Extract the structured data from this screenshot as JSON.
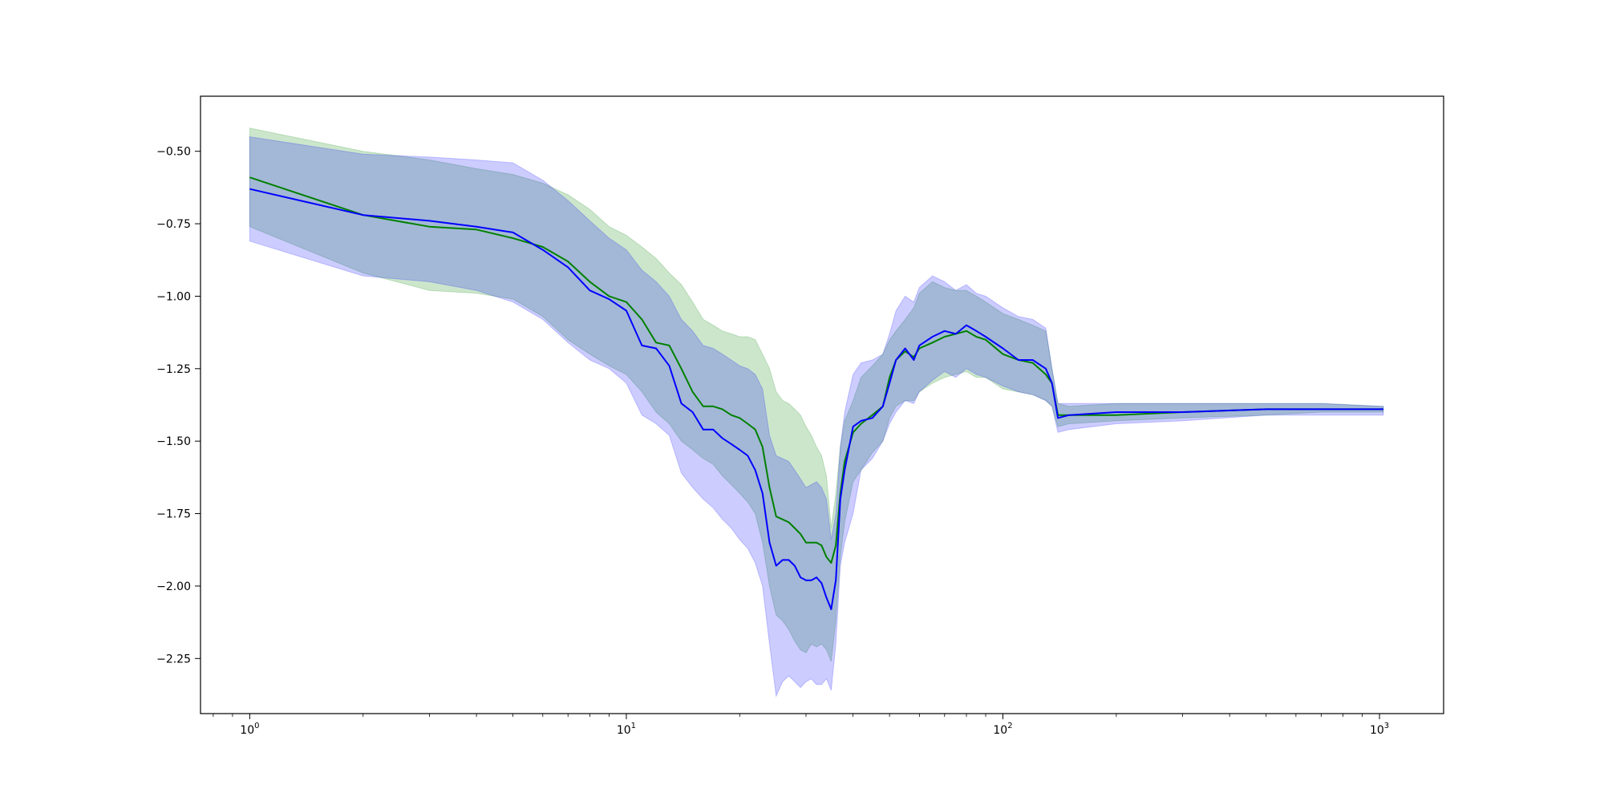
{
  "chart_data": {
    "type": "line",
    "title": "",
    "xlabel": "",
    "ylabel": "",
    "xscale": "log",
    "xlim": [
      0.74,
      1480
    ],
    "ylim": [
      -2.44,
      -0.31
    ],
    "grid": false,
    "x_ticks": [
      {
        "value": 1,
        "base": "10",
        "exp": "0"
      },
      {
        "value": 10,
        "base": "10",
        "exp": "1"
      },
      {
        "value": 100,
        "base": "10",
        "exp": "2"
      },
      {
        "value": 1000,
        "base": "10",
        "exp": "3"
      }
    ],
    "y_ticks": [
      {
        "value": -0.5,
        "label": "−0.50"
      },
      {
        "value": -0.75,
        "label": "−0.75"
      },
      {
        "value": -1.0,
        "label": "−1.00"
      },
      {
        "value": -1.25,
        "label": "−1.25"
      },
      {
        "value": -1.5,
        "label": "−1.50"
      },
      {
        "value": -1.75,
        "label": "−1.75"
      },
      {
        "value": -2.0,
        "label": "−2.00"
      },
      {
        "value": -2.25,
        "label": "−2.25"
      }
    ],
    "colors": {
      "green": "#008000",
      "blue": "#0000ff",
      "green_band": "rgba(0,128,0,0.2)",
      "blue_band": "rgba(0,0,255,0.2)"
    },
    "series": [
      {
        "color_key": "green",
        "x": [
          1,
          2,
          3,
          4,
          5,
          6,
          7,
          8,
          9,
          10,
          11,
          12,
          13,
          14,
          15,
          16,
          17,
          18,
          19,
          20,
          21,
          22,
          23,
          24,
          25,
          26,
          27,
          28,
          29,
          30,
          31,
          32,
          33,
          34,
          35,
          36,
          37,
          38,
          40,
          42,
          45,
          48,
          50,
          52,
          55,
          58,
          60,
          65,
          70,
          75,
          80,
          85,
          90,
          100,
          110,
          120,
          130,
          135,
          140,
          150,
          200,
          300,
          500,
          700,
          1024
        ],
        "y": [
          -0.59,
          -0.72,
          -0.76,
          -0.77,
          -0.8,
          -0.83,
          -0.88,
          -0.95,
          -1.0,
          -1.02,
          -1.08,
          -1.16,
          -1.17,
          -1.25,
          -1.33,
          -1.38,
          -1.38,
          -1.39,
          -1.41,
          -1.42,
          -1.44,
          -1.46,
          -1.52,
          -1.66,
          -1.76,
          -1.77,
          -1.78,
          -1.8,
          -1.82,
          -1.85,
          -1.85,
          -1.85,
          -1.86,
          -1.9,
          -1.92,
          -1.86,
          -1.68,
          -1.57,
          -1.47,
          -1.44,
          -1.41,
          -1.38,
          -1.28,
          -1.22,
          -1.19,
          -1.21,
          -1.18,
          -1.16,
          -1.14,
          -1.13,
          -1.12,
          -1.14,
          -1.15,
          -1.2,
          -1.22,
          -1.23,
          -1.27,
          -1.3,
          -1.41,
          -1.41,
          -1.41,
          -1.4,
          -1.39,
          -1.39,
          -1.39
        ],
        "lower": [
          -0.76,
          -0.92,
          -0.98,
          -0.99,
          -1.01,
          -1.07,
          -1.15,
          -1.2,
          -1.24,
          -1.27,
          -1.33,
          -1.4,
          -1.44,
          -1.5,
          -1.53,
          -1.56,
          -1.58,
          -1.62,
          -1.65,
          -1.68,
          -1.71,
          -1.75,
          -1.85,
          -2.0,
          -2.1,
          -2.12,
          -2.15,
          -2.19,
          -2.22,
          -2.23,
          -2.2,
          -2.21,
          -2.2,
          -2.22,
          -2.26,
          -2.12,
          -1.9,
          -1.78,
          -1.64,
          -1.6,
          -1.54,
          -1.5,
          -1.42,
          -1.38,
          -1.36,
          -1.36,
          -1.33,
          -1.3,
          -1.28,
          -1.27,
          -1.26,
          -1.28,
          -1.28,
          -1.32,
          -1.33,
          -1.34,
          -1.36,
          -1.38,
          -1.45,
          -1.44,
          -1.43,
          -1.42,
          -1.41,
          -1.4,
          -1.4
        ],
        "upper": [
          -0.42,
          -0.5,
          -0.53,
          -0.56,
          -0.58,
          -0.61,
          -0.65,
          -0.7,
          -0.76,
          -0.79,
          -0.83,
          -0.87,
          -0.92,
          -0.96,
          -1.02,
          -1.08,
          -1.1,
          -1.12,
          -1.13,
          -1.14,
          -1.14,
          -1.15,
          -1.2,
          -1.25,
          -1.33,
          -1.36,
          -1.37,
          -1.39,
          -1.41,
          -1.45,
          -1.48,
          -1.52,
          -1.55,
          -1.62,
          -1.8,
          -1.68,
          -1.52,
          -1.43,
          -1.36,
          -1.28,
          -1.24,
          -1.2,
          -1.15,
          -1.12,
          -1.08,
          -1.04,
          -0.99,
          -0.95,
          -0.97,
          -0.98,
          -0.98,
          -1.0,
          -1.02,
          -1.06,
          -1.08,
          -1.1,
          -1.12,
          -1.25,
          -1.37,
          -1.38,
          -1.37,
          -1.37,
          -1.37,
          -1.37,
          -1.38
        ]
      },
      {
        "color_key": "blue",
        "x": [
          1,
          2,
          3,
          4,
          5,
          6,
          7,
          8,
          9,
          10,
          11,
          12,
          13,
          14,
          15,
          16,
          17,
          18,
          19,
          20,
          21,
          22,
          23,
          24,
          25,
          26,
          27,
          28,
          29,
          30,
          31,
          32,
          33,
          34,
          35,
          36,
          37,
          38,
          40,
          42,
          45,
          48,
          50,
          52,
          55,
          58,
          60,
          65,
          70,
          75,
          80,
          85,
          90,
          100,
          110,
          120,
          130,
          135,
          140,
          150,
          200,
          300,
          500,
          700,
          1024
        ],
        "y": [
          -0.63,
          -0.72,
          -0.74,
          -0.76,
          -0.78,
          -0.84,
          -0.9,
          -0.98,
          -1.01,
          -1.05,
          -1.17,
          -1.18,
          -1.24,
          -1.37,
          -1.4,
          -1.46,
          -1.46,
          -1.49,
          -1.51,
          -1.53,
          -1.55,
          -1.6,
          -1.68,
          -1.85,
          -1.93,
          -1.91,
          -1.91,
          -1.93,
          -1.97,
          -1.98,
          -1.98,
          -1.97,
          -1.99,
          -2.04,
          -2.08,
          -1.98,
          -1.7,
          -1.6,
          -1.45,
          -1.43,
          -1.42,
          -1.38,
          -1.3,
          -1.22,
          -1.18,
          -1.22,
          -1.17,
          -1.14,
          -1.12,
          -1.13,
          -1.1,
          -1.12,
          -1.14,
          -1.18,
          -1.22,
          -1.22,
          -1.25,
          -1.3,
          -1.42,
          -1.41,
          -1.4,
          -1.4,
          -1.39,
          -1.39,
          -1.39
        ],
        "lower": [
          -0.81,
          -0.93,
          -0.95,
          -0.98,
          -1.02,
          -1.08,
          -1.16,
          -1.22,
          -1.25,
          -1.3,
          -1.41,
          -1.44,
          -1.48,
          -1.61,
          -1.66,
          -1.7,
          -1.73,
          -1.77,
          -1.8,
          -1.84,
          -1.87,
          -1.92,
          -2.0,
          -2.2,
          -2.38,
          -2.33,
          -2.31,
          -2.33,
          -2.35,
          -2.33,
          -2.32,
          -2.34,
          -2.34,
          -2.32,
          -2.36,
          -2.2,
          -1.93,
          -1.85,
          -1.75,
          -1.6,
          -1.56,
          -1.5,
          -1.44,
          -1.4,
          -1.36,
          -1.37,
          -1.33,
          -1.29,
          -1.26,
          -1.28,
          -1.25,
          -1.27,
          -1.28,
          -1.31,
          -1.33,
          -1.34,
          -1.36,
          -1.38,
          -1.47,
          -1.46,
          -1.44,
          -1.43,
          -1.41,
          -1.41,
          -1.41
        ],
        "upper": [
          -0.45,
          -0.51,
          -0.52,
          -0.53,
          -0.54,
          -0.6,
          -0.67,
          -0.74,
          -0.8,
          -0.84,
          -0.91,
          -0.95,
          -1.0,
          -1.08,
          -1.12,
          -1.17,
          -1.18,
          -1.2,
          -1.22,
          -1.24,
          -1.25,
          -1.27,
          -1.32,
          -1.48,
          -1.55,
          -1.56,
          -1.57,
          -1.6,
          -1.63,
          -1.66,
          -1.65,
          -1.64,
          -1.66,
          -1.7,
          -1.84,
          -1.75,
          -1.52,
          -1.4,
          -1.27,
          -1.23,
          -1.22,
          -1.2,
          -1.13,
          -1.05,
          -1.0,
          -1.02,
          -0.97,
          -0.93,
          -0.95,
          -0.98,
          -0.96,
          -0.99,
          -1.0,
          -1.04,
          -1.07,
          -1.08,
          -1.11,
          -1.25,
          -1.37,
          -1.37,
          -1.37,
          -1.37,
          -1.37,
          -1.37,
          -1.38
        ]
      }
    ]
  }
}
